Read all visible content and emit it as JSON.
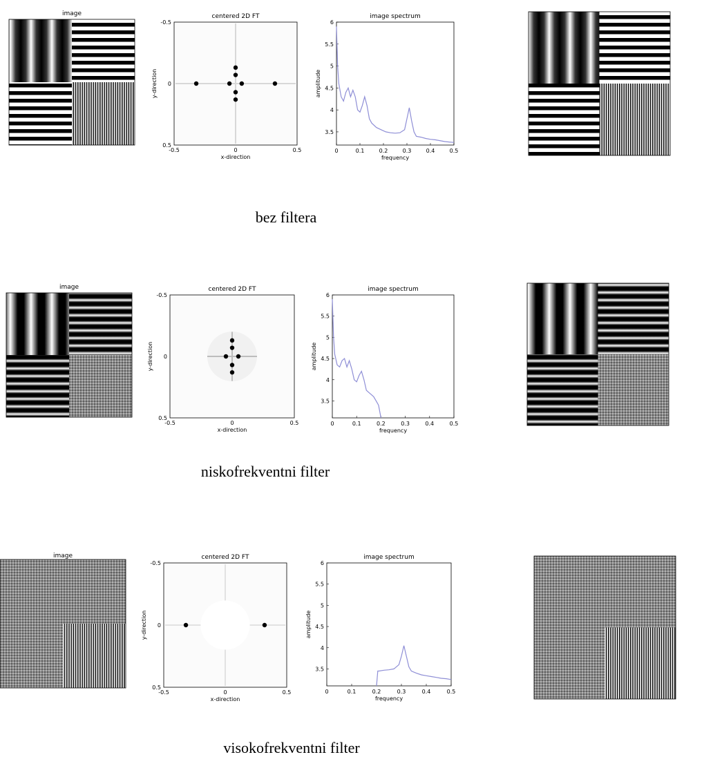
{
  "rows": [
    {
      "caption": "bez filtera",
      "filter": "none",
      "image_title": "image",
      "ft_title": "centered 2D FT",
      "ft_xlabel": "x-direction",
      "ft_ylabel": "y-direction",
      "ft_xticks": [
        "-0.5",
        "0",
        "0.5"
      ],
      "ft_yticks": [
        "-0.5",
        "0",
        "0.5"
      ],
      "spec_title": "image spectrum",
      "spec_xlabel": "frequency",
      "spec_ylabel": "amplitude"
    },
    {
      "caption": "niskofrekventni filter",
      "filter": "lowpass",
      "image_title": "image",
      "ft_title": "centered 2D FT",
      "ft_xlabel": "x-direction",
      "ft_ylabel": "y-direction",
      "ft_xticks": [
        "-0.5",
        "0",
        "0.5"
      ],
      "ft_yticks": [
        "-0.5",
        "0",
        "0.5"
      ],
      "spec_title": "image spectrum",
      "spec_xlabel": "frequency",
      "spec_ylabel": "amplitude"
    },
    {
      "caption": "visokofrekventni  filter",
      "filter": "highpass",
      "image_title": "image",
      "ft_title": "centered 2D FT",
      "ft_xlabel": "x-direction",
      "ft_ylabel": "y-direction",
      "ft_xticks": [
        "-0.5",
        "0",
        "0.5"
      ],
      "ft_yticks": [
        "-0.5",
        "0",
        "0.5"
      ],
      "spec_title": "image spectrum",
      "spec_xlabel": "frequency",
      "spec_ylabel": "amplitude"
    }
  ],
  "colors": {
    "spectrum_line": "#8e8ed6",
    "peak": "#000000",
    "axis": "#000000",
    "stripe_dark": "#000000",
    "stripe_light": "#ffffff"
  },
  "chart_data": [
    {
      "type": "line",
      "title": "image spectrum",
      "xlabel": "frequency",
      "ylabel": "amplitude",
      "xlim": [
        0,
        0.5
      ],
      "ylim": [
        3.2,
        6
      ],
      "xticks": [
        "0",
        "0.1",
        "0.2",
        "0.3",
        "0.4",
        "0.5"
      ],
      "yticks": [
        "3.5",
        "4",
        "4.5",
        "5",
        "5.5",
        "6"
      ],
      "x": [
        0,
        0.005,
        0.01,
        0.02,
        0.03,
        0.04,
        0.05,
        0.06,
        0.07,
        0.08,
        0.09,
        0.1,
        0.11,
        0.12,
        0.13,
        0.14,
        0.15,
        0.17,
        0.19,
        0.21,
        0.23,
        0.25,
        0.27,
        0.29,
        0.3,
        0.31,
        0.32,
        0.33,
        0.34,
        0.36,
        0.38,
        0.4,
        0.42,
        0.44,
        0.46,
        0.48,
        0.5
      ],
      "y": [
        5.9,
        5.0,
        4.6,
        4.3,
        4.2,
        4.4,
        4.5,
        4.3,
        4.45,
        4.3,
        4.0,
        3.95,
        4.1,
        4.3,
        4.1,
        3.8,
        3.7,
        3.6,
        3.55,
        3.5,
        3.48,
        3.47,
        3.48,
        3.55,
        3.8,
        4.05,
        3.75,
        3.5,
        3.4,
        3.38,
        3.35,
        3.33,
        3.32,
        3.3,
        3.28,
        3.27,
        3.26
      ]
    },
    {
      "type": "line",
      "title": "image spectrum",
      "xlabel": "frequency",
      "ylabel": "amplitude",
      "xlim": [
        0,
        0.5
      ],
      "ylim": [
        3.1,
        6
      ],
      "xticks": [
        "0",
        "0.1",
        "0.2",
        "0.3",
        "0.4",
        "0.5"
      ],
      "yticks": [
        "3.5",
        "4",
        "4.5",
        "5",
        "5.5",
        "6"
      ],
      "x": [
        0,
        0.005,
        0.01,
        0.02,
        0.03,
        0.04,
        0.05,
        0.06,
        0.07,
        0.08,
        0.09,
        0.1,
        0.11,
        0.12,
        0.13,
        0.14,
        0.15,
        0.16,
        0.17,
        0.18,
        0.19,
        0.2
      ],
      "y": [
        5.9,
        5.0,
        4.6,
        4.35,
        4.3,
        4.45,
        4.5,
        4.3,
        4.45,
        4.25,
        4.0,
        3.95,
        4.1,
        4.2,
        4.0,
        3.75,
        3.7,
        3.65,
        3.6,
        3.5,
        3.4,
        3.1
      ]
    },
    {
      "type": "line",
      "title": "image spectrum",
      "xlabel": "frequency",
      "ylabel": "amplitude",
      "xlim": [
        0,
        0.5
      ],
      "ylim": [
        3.1,
        6
      ],
      "xticks": [
        "0",
        "0.1",
        "0.2",
        "0.3",
        "0.4",
        "0.5"
      ],
      "yticks": [
        "3.5",
        "4",
        "4.5",
        "5",
        "5.5",
        "6"
      ],
      "x": [
        0.2,
        0.205,
        0.21,
        0.23,
        0.25,
        0.27,
        0.29,
        0.3,
        0.31,
        0.32,
        0.33,
        0.34,
        0.36,
        0.38,
        0.4,
        0.42,
        0.44,
        0.46,
        0.48,
        0.5
      ],
      "y": [
        3.1,
        3.45,
        3.45,
        3.47,
        3.48,
        3.5,
        3.6,
        3.8,
        4.05,
        3.8,
        3.55,
        3.45,
        3.4,
        3.36,
        3.34,
        3.32,
        3.3,
        3.28,
        3.27,
        3.25
      ]
    }
  ]
}
